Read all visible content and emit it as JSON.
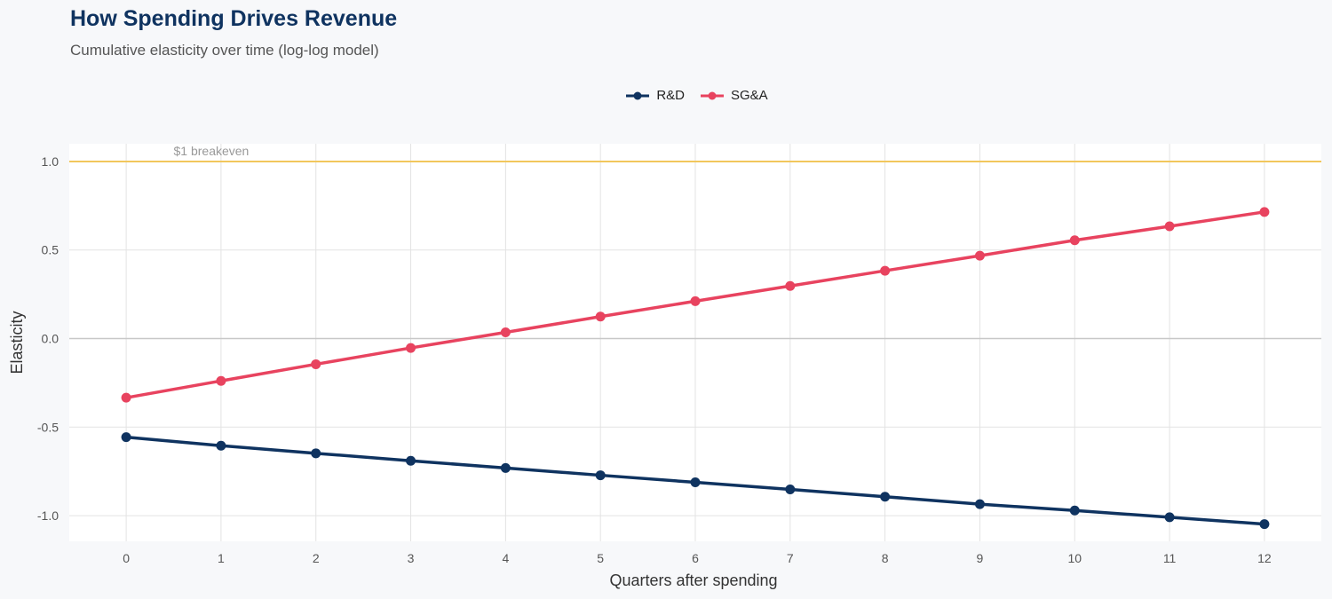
{
  "chart_data": {
    "type": "line",
    "title": "How Spending Drives Revenue",
    "subtitle": "Cumulative elasticity over time (log-log model)",
    "xlabel": "Quarters after spending",
    "ylabel": "Elasticity",
    "x": [
      0,
      1,
      2,
      3,
      4,
      5,
      6,
      7,
      8,
      9,
      10,
      11,
      12
    ],
    "xlim": [
      -0.6,
      12.6
    ],
    "ylim": [
      -1.145,
      1.1
    ],
    "xticks": [
      "0",
      "1",
      "2",
      "3",
      "4",
      "5",
      "6",
      "7",
      "8",
      "9",
      "10",
      "11",
      "12"
    ],
    "yticks": [
      {
        "v": 1.0,
        "label": "1.0"
      },
      {
        "v": 0.5,
        "label": "0.5"
      },
      {
        "v": 0.0,
        "label": "0.0"
      },
      {
        "v": -0.5,
        "label": "-0.5"
      },
      {
        "v": -1.0,
        "label": "-1.0"
      }
    ],
    "grid": true,
    "legend_position": "top",
    "series": [
      {
        "name": "R&D",
        "color": "#0f3360",
        "values": [
          -0.557,
          -0.605,
          -0.648,
          -0.69,
          -0.731,
          -0.772,
          -0.812,
          -0.852,
          -0.893,
          -0.935,
          -0.971,
          -1.009,
          -1.048
        ]
      },
      {
        "name": "SG&A",
        "color": "#e8435f",
        "values": [
          -0.334,
          -0.239,
          -0.145,
          -0.053,
          0.035,
          0.124,
          0.211,
          0.297,
          0.383,
          0.468,
          0.555,
          0.634,
          0.715
        ]
      }
    ],
    "reference_line": {
      "y": 1.0,
      "label": "$1 breakeven",
      "color": "#f2c75c"
    },
    "zero_line_color": "#c8c8c8"
  }
}
